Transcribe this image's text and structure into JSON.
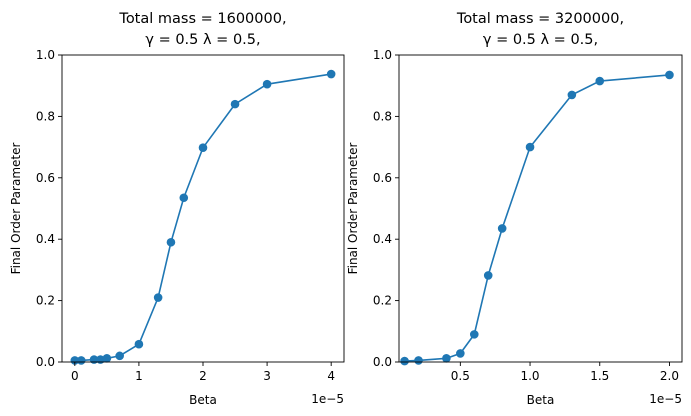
{
  "chart_data": [
    {
      "type": "line",
      "title_lines": [
        "Total mass = 1600000,",
        "γ = 0.5 λ = 0.5,"
      ],
      "xlabel": "Beta",
      "ylabel": "Final Order Parameter",
      "x_offset_label": "1e−5",
      "xlim": [
        -0.2,
        4.2
      ],
      "ylim": [
        0.0,
        1.0
      ],
      "xticks": [
        0,
        1,
        2,
        3,
        4
      ],
      "xtick_labels": [
        "0",
        "1",
        "2",
        "3",
        "4"
      ],
      "yticks": [
        0.0,
        0.2,
        0.4,
        0.6,
        0.8,
        1.0
      ],
      "ytick_labels": [
        "0.0",
        "0.2",
        "0.4",
        "0.6",
        "0.8",
        "1.0"
      ],
      "grid": false,
      "marker": "circle",
      "color": "#1f77b4",
      "series": [
        {
          "x": [
            0.0,
            0.1,
            0.3,
            0.4,
            0.5,
            0.7,
            1.0,
            1.3,
            1.5,
            1.7,
            2.0,
            2.5,
            3.0,
            4.0
          ],
          "y": [
            0.005,
            0.005,
            0.008,
            0.008,
            0.012,
            0.02,
            0.058,
            0.21,
            0.39,
            0.535,
            0.698,
            0.84,
            0.905,
            0.938
          ]
        }
      ]
    },
    {
      "type": "line",
      "title_lines": [
        "Total mass = 3200000,",
        "γ = 0.5 λ = 0.5,"
      ],
      "xlabel": "Beta",
      "ylabel": "Final Order Parameter",
      "x_offset_label": "1e−5",
      "xlim": [
        0.06,
        2.09
      ],
      "ylim": [
        0.0,
        1.0
      ],
      "xticks": [
        0.5,
        1.0,
        1.5,
        2.0
      ],
      "xtick_labels": [
        "0.5",
        "1.0",
        "1.5",
        "2.0"
      ],
      "yticks": [
        0.0,
        0.2,
        0.4,
        0.6,
        0.8,
        1.0
      ],
      "ytick_labels": [
        "0.0",
        "0.2",
        "0.4",
        "0.6",
        "0.8",
        "1.0"
      ],
      "grid": false,
      "marker": "circle",
      "color": "#1f77b4",
      "series": [
        {
          "x": [
            0.1,
            0.2,
            0.4,
            0.5,
            0.6,
            0.7,
            0.8,
            1.0,
            1.3,
            1.5,
            2.0
          ],
          "y": [
            0.003,
            0.005,
            0.012,
            0.028,
            0.09,
            0.282,
            0.435,
            0.7,
            0.87,
            0.915,
            0.935
          ]
        }
      ]
    }
  ]
}
